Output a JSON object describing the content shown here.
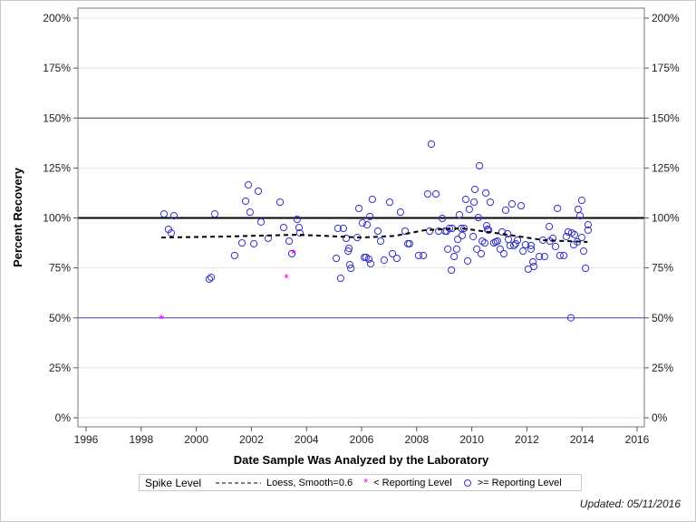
{
  "chart_data": {
    "type": "scatter",
    "xlabel": "Date Sample Was Analyzed by the Laboratory",
    "ylabel": "Percent Recovery",
    "xlim": [
      1995.7,
      2016.3
    ],
    "ylim": [
      -4.5,
      205
    ],
    "xticks": [
      1996,
      1998,
      2000,
      2002,
      2004,
      2006,
      2008,
      2010,
      2012,
      2014,
      2016
    ],
    "yticks": [
      0,
      25,
      50,
      75,
      100,
      125,
      150,
      175,
      200
    ],
    "ytick_labels": [
      "0%",
      "25%",
      "50%",
      "75%",
      "100%",
      "125%",
      "150%",
      "175%",
      "200%"
    ],
    "grid": true,
    "reference_lines": [
      {
        "y": 100,
        "style": "thick-black"
      },
      {
        "y": 150,
        "style": "dark"
      },
      {
        "y": 50,
        "style": "dark-blue"
      }
    ],
    "legend": {
      "title": "Spike Level",
      "placement": "bottom",
      "entries": [
        "Loess, Smooth=0.6",
        "< Reporting Level",
        ">= Reporting Level"
      ]
    },
    "colors": {
      "below_reporting": "#ff00ff",
      "at_or_above_reporting": "#3333cc",
      "loess": "#000000"
    },
    "series": [
      {
        "name": "< Reporting Level",
        "marker": "asterisk",
        "points": [
          [
            1998.73,
            50
          ],
          [
            2003.27,
            70.3
          ],
          [
            2003.53,
            82.5
          ]
        ]
      },
      {
        "name": ">= Reporting Level",
        "marker": "open-circle",
        "points": [
          [
            1998.83,
            102
          ],
          [
            1998.99,
            94.3
          ],
          [
            1999.09,
            92.5
          ],
          [
            1999.19,
            101.1
          ],
          [
            2000.47,
            69.4
          ],
          [
            2000.54,
            70.3
          ],
          [
            2000.67,
            102
          ],
          [
            2001.39,
            81.2
          ],
          [
            2001.66,
            87.5
          ],
          [
            2001.79,
            108.4
          ],
          [
            2001.89,
            116.5
          ],
          [
            2001.95,
            102.9
          ],
          [
            2002.09,
            87.1
          ],
          [
            2002.25,
            113.4
          ],
          [
            2002.35,
            98
          ],
          [
            2002.61,
            89.8
          ],
          [
            2003.04,
            107.9
          ],
          [
            2003.17,
            95.2
          ],
          [
            2003.37,
            88.4
          ],
          [
            2003.47,
            82.1
          ],
          [
            2003.66,
            99.3
          ],
          [
            2003.73,
            95.2
          ],
          [
            2003.76,
            92.5
          ],
          [
            2005.14,
            94.8
          ],
          [
            2005.34,
            94.8
          ],
          [
            2005.44,
            89.8
          ],
          [
            2005.08,
            79.8
          ],
          [
            2005.24,
            69.8
          ],
          [
            2005.51,
            83.4
          ],
          [
            2005.54,
            84.8
          ],
          [
            2005.57,
            76.6
          ],
          [
            2005.61,
            74.8
          ],
          [
            2005.84,
            90.2
          ],
          [
            2005.9,
            104.8
          ],
          [
            2006.03,
            97.5
          ],
          [
            2006.2,
            96.6
          ],
          [
            2006.3,
            100.7
          ],
          [
            2006.39,
            109.3
          ],
          [
            2006.1,
            80.3
          ],
          [
            2006.16,
            80.3
          ],
          [
            2006.26,
            79.4
          ],
          [
            2006.33,
            77.1
          ],
          [
            2006.59,
            93.4
          ],
          [
            2006.69,
            88.4
          ],
          [
            2006.82,
            78.9
          ],
          [
            2007.02,
            107.9
          ],
          [
            2007.12,
            82.1
          ],
          [
            2007.28,
            79.8
          ],
          [
            2007.41,
            102.9
          ],
          [
            2007.58,
            93.4
          ],
          [
            2007.68,
            87.1
          ],
          [
            2007.74,
            87.1
          ],
          [
            2008.07,
            81.2
          ],
          [
            2008.24,
            81.2
          ],
          [
            2008.4,
            112
          ],
          [
            2008.53,
            137
          ],
          [
            2008.7,
            112
          ],
          [
            2008.47,
            93.4
          ],
          [
            2008.8,
            93.4
          ],
          [
            2008.93,
            99.8
          ],
          [
            2009.03,
            93.4
          ],
          [
            2009.09,
            93.4
          ],
          [
            2009.13,
            84.4
          ],
          [
            2009.19,
            94.8
          ],
          [
            2009.26,
            73.9
          ],
          [
            2009.29,
            94.8
          ],
          [
            2009.36,
            80.7
          ],
          [
            2009.45,
            84.4
          ],
          [
            2009.49,
            89.3
          ],
          [
            2009.55,
            101.6
          ],
          [
            2009.62,
            94.8
          ],
          [
            2009.65,
            91.2
          ],
          [
            2009.72,
            94.8
          ],
          [
            2009.78,
            109.3
          ],
          [
            2009.85,
            78.5
          ],
          [
            2009.91,
            104.3
          ],
          [
            2010.05,
            90.7
          ],
          [
            2010.08,
            107.9
          ],
          [
            2010.11,
            114.3
          ],
          [
            2010.18,
            84.4
          ],
          [
            2010.28,
            126.1
          ],
          [
            2010.34,
            82.1
          ],
          [
            2010.38,
            88.4
          ],
          [
            2010.47,
            87.5
          ],
          [
            2010.51,
            112.5
          ],
          [
            2010.57,
            94.3
          ],
          [
            2010.67,
            107.9
          ],
          [
            2010.24,
            100.2
          ],
          [
            2010.54,
            96.1
          ],
          [
            2010.61,
            93.9
          ],
          [
            2010.8,
            87.5
          ],
          [
            2010.87,
            88
          ],
          [
            2010.93,
            88.4
          ],
          [
            2011.03,
            84.4
          ],
          [
            2011.16,
            82.1
          ],
          [
            2011.1,
            93
          ],
          [
            2011.23,
            103.9
          ],
          [
            2011.46,
            107
          ],
          [
            2011.79,
            106.1
          ],
          [
            2011.3,
            92.1
          ],
          [
            2011.33,
            89.3
          ],
          [
            2011.39,
            86.2
          ],
          [
            2011.53,
            86.2
          ],
          [
            2011.59,
            87.1
          ],
          [
            2011.66,
            88.9
          ],
          [
            2011.86,
            83.4
          ],
          [
            2011.95,
            86.6
          ],
          [
            2012.05,
            74.4
          ],
          [
            2012.15,
            86.2
          ],
          [
            2012.15,
            84.4
          ],
          [
            2012.22,
            78
          ],
          [
            2012.25,
            75.7
          ],
          [
            2012.45,
            80.7
          ],
          [
            2012.58,
            88.9
          ],
          [
            2012.64,
            80.7
          ],
          [
            2012.81,
            95.7
          ],
          [
            2012.84,
            88.4
          ],
          [
            2012.94,
            89.8
          ],
          [
            2013.04,
            85.7
          ],
          [
            2013.11,
            104.8
          ],
          [
            2013.2,
            81.2
          ],
          [
            2013.34,
            81.2
          ],
          [
            2013.43,
            90.7
          ],
          [
            2013.5,
            93
          ],
          [
            2013.63,
            92.5
          ],
          [
            2013.73,
            91.6
          ],
          [
            2013.7,
            86.6
          ],
          [
            2013.83,
            88
          ],
          [
            2013.6,
            50
          ],
          [
            2013.86,
            104.3
          ],
          [
            2013.93,
            101.1
          ],
          [
            2013.99,
            108.8
          ],
          [
            2013.99,
            90.2
          ],
          [
            2014.06,
            83.4
          ],
          [
            2014.13,
            74.8
          ],
          [
            2014.22,
            96.6
          ],
          [
            2014.22,
            93.9
          ]
        ]
      },
      {
        "name": "Loess, Smooth=0.6",
        "marker": "dashed-line",
        "points": [
          [
            1998.73,
            90.2
          ],
          [
            2001,
            90.7
          ],
          [
            2003.7,
            91.6
          ],
          [
            2006,
            90.2
          ],
          [
            2007.2,
            91
          ],
          [
            2008.3,
            93.9
          ],
          [
            2009.65,
            94.8
          ],
          [
            2010.6,
            93
          ],
          [
            2011.6,
            91
          ],
          [
            2012.6,
            88.9
          ],
          [
            2014.2,
            88
          ]
        ]
      }
    ]
  },
  "footer": {
    "updated": "Updated: 05/11/2016"
  }
}
